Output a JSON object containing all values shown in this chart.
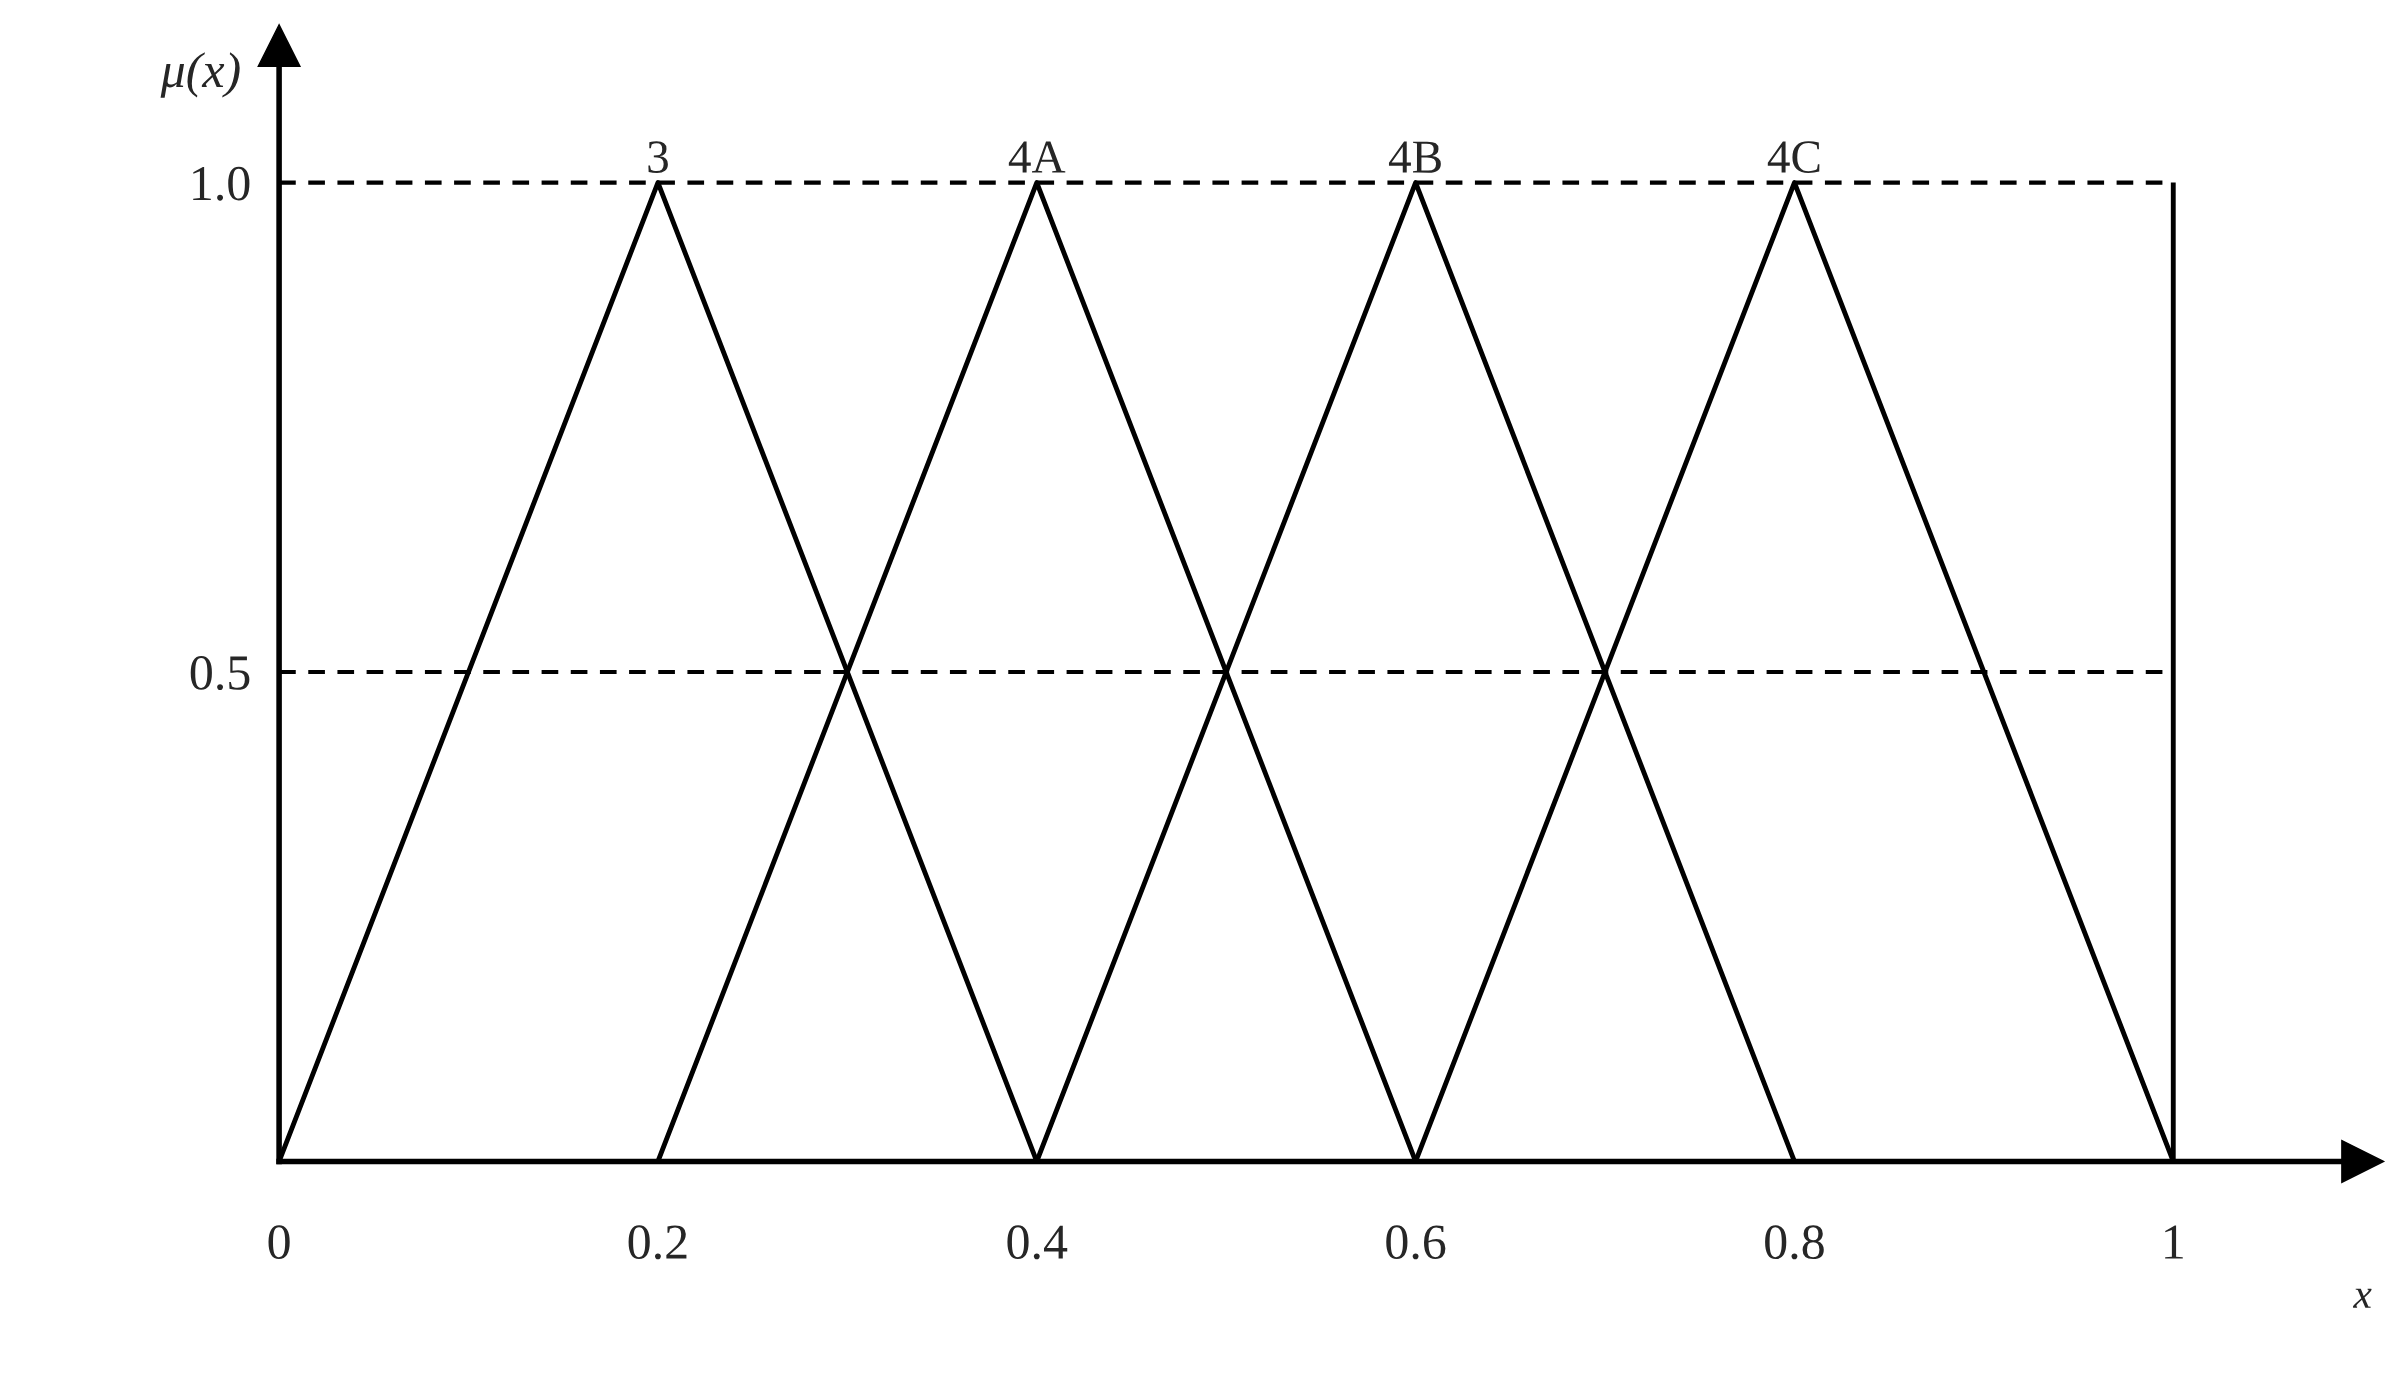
{
  "chart_data": {
    "type": "line",
    "xlabel": "x",
    "ylabel": "μ(x)",
    "xlim": [
      0,
      1.1
    ],
    "ylim": [
      0,
      1.14
    ],
    "xticks": [
      0,
      0.2,
      0.4,
      0.6,
      0.8,
      1
    ],
    "yticks": [
      0.5,
      {
        "value": 1.0,
        "label": "1.0"
      }
    ],
    "grid": false,
    "legend": false,
    "marker": "none",
    "line_style": "solid",
    "series": [
      {
        "name": "3",
        "color": "#000000",
        "x": [
          0,
          0.2,
          0.4
        ],
        "values": [
          0,
          1,
          0
        ]
      },
      {
        "name": "4A",
        "color": "#000000",
        "x": [
          0.2,
          0.4,
          0.6
        ],
        "values": [
          0,
          1,
          0
        ]
      },
      {
        "name": "4B",
        "color": "#000000",
        "x": [
          0.4,
          0.6,
          0.8
        ],
        "values": [
          0,
          1,
          0
        ]
      },
      {
        "name": "4C",
        "color": "#000000",
        "x": [
          0.6,
          0.8,
          1.0
        ],
        "values": [
          0,
          1,
          0
        ]
      }
    ],
    "ref_lines": [
      {
        "axis": "y",
        "value": 1.0,
        "color": "#000000",
        "line_style": "dashed"
      },
      {
        "axis": "y",
        "value": 0.5,
        "color": "#000000",
        "line_style": "dashed"
      },
      {
        "axis": "x",
        "value": 1.0,
        "color": "#000000",
        "line_style": "solid"
      }
    ]
  }
}
